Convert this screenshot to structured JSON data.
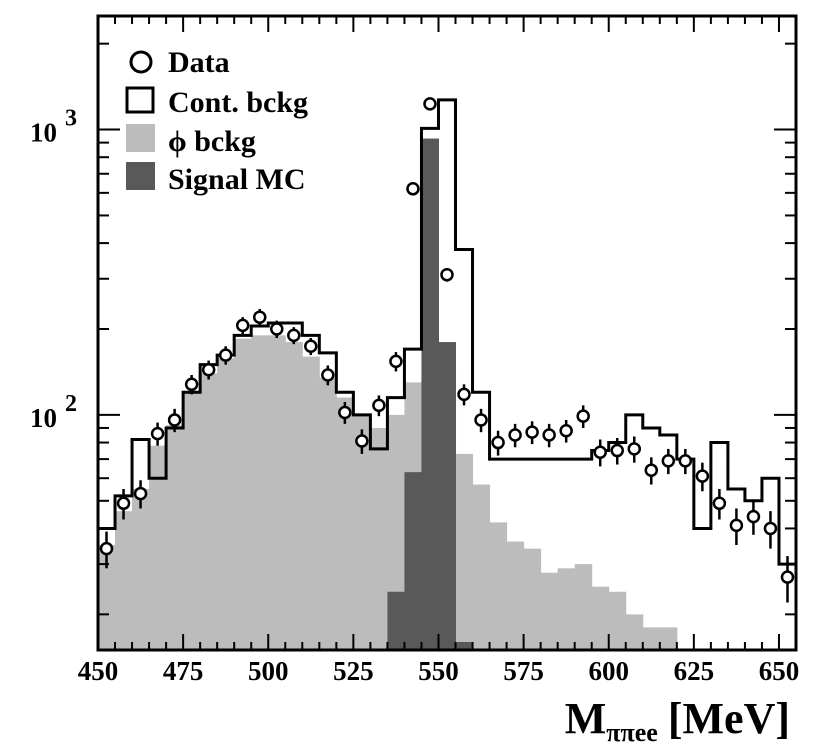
{
  "chart_data": {
    "type": "histogram",
    "title": "",
    "xlabel": {
      "main": "M",
      "subscript": "ππee",
      "unit": "[MeV]"
    },
    "ylabel": "",
    "xlim": [
      450,
      655
    ],
    "ylim": [
      15,
      2500
    ],
    "y_scale": "log",
    "bin_width": 5,
    "x_ticks": [
      "450",
      "475",
      "500",
      "525",
      "550",
      "575",
      "600",
      "625",
      "650"
    ],
    "y_ticks": [
      {
        "value": 100,
        "base": "10",
        "exp": "2"
      },
      {
        "value": 1000,
        "base": "10",
        "exp": "3"
      }
    ],
    "legend_position": "top-left",
    "legend": [
      {
        "key": "data",
        "label": "Data"
      },
      {
        "key": "cont",
        "label": "Cont. bckg"
      },
      {
        "key": "phi",
        "label": "ϕ bckg"
      },
      {
        "key": "signal",
        "label": "Signal MC"
      }
    ],
    "colors": {
      "phi": "#bcbcbc",
      "signal": "#595959",
      "line": "#000000",
      "marker_fill": "#ffffff"
    },
    "bin_edges_start": [
      450,
      455,
      460,
      465,
      470,
      475,
      480,
      485,
      490,
      495,
      500,
      505,
      510,
      515,
      520,
      525,
      530,
      535,
      540,
      545,
      550,
      555,
      560,
      565,
      570,
      575,
      580,
      585,
      590,
      595,
      600,
      605,
      610,
      615,
      620,
      625,
      630,
      635,
      640,
      645,
      650
    ],
    "phi_bckg": [
      35,
      46,
      55,
      78,
      92,
      120,
      140,
      158,
      185,
      190,
      190,
      180,
      160,
      135,
      115,
      100,
      90,
      100,
      130,
      240,
      150,
      73,
      57,
      42,
      36,
      34,
      28,
      29,
      30,
      25,
      24,
      20,
      18,
      18,
      15,
      14,
      13,
      13,
      12,
      12,
      11
    ],
    "signal_mc": [
      0,
      0,
      0,
      0,
      0,
      0,
      0,
      0,
      0,
      0,
      0,
      0,
      0,
      0,
      0,
      0,
      0,
      24,
      63,
      930,
      180,
      16,
      0,
      0,
      0,
      0,
      0,
      0,
      0,
      0,
      0,
      0,
      0,
      0,
      0,
      0,
      0,
      0,
      0,
      0,
      0
    ],
    "cont_total": [
      40,
      52,
      82,
      60,
      90,
      120,
      150,
      162,
      190,
      205,
      210,
      210,
      190,
      165,
      120,
      100,
      76,
      115,
      170,
      1010,
      1270,
      380,
      120,
      70,
      70,
      70,
      70,
      70,
      70,
      75,
      80,
      100,
      90,
      85,
      70,
      40,
      80,
      55,
      50,
      60,
      30
    ],
    "data_x": [
      452.5,
      457.5,
      462.5,
      467.5,
      472.5,
      477.5,
      482.5,
      487.5,
      492.5,
      497.5,
      502.5,
      507.5,
      512.5,
      517.5,
      522.5,
      527.5,
      532.5,
      537.5,
      542.5,
      547.5,
      552.5,
      557.5,
      562.5,
      567.5,
      572.5,
      577.5,
      582.5,
      587.5,
      592.5,
      597.5,
      602.5,
      607.5,
      612.5,
      617.5,
      622.5,
      627.5,
      632.5,
      637.5,
      642.5,
      647.5,
      652.5
    ],
    "data_y": [
      34,
      49,
      53,
      86,
      96,
      128,
      144,
      162,
      206,
      220,
      200,
      190,
      174,
      138,
      102,
      81,
      108,
      154,
      620,
      1230,
      310,
      118,
      96,
      80,
      85,
      87,
      85,
      88,
      99,
      74,
      75,
      76,
      64,
      69,
      69,
      61,
      49,
      41,
      44,
      40,
      27
    ],
    "data_err": [
      5,
      6,
      6,
      8,
      9,
      10,
      11,
      12,
      14,
      15,
      14,
      13,
      12,
      11,
      9,
      8,
      9,
      12,
      25,
      35,
      17,
      10,
      9,
      8,
      8,
      8,
      8,
      8,
      9,
      8,
      8,
      8,
      7,
      7,
      7,
      7,
      6,
      6,
      6,
      6,
      5
    ]
  }
}
